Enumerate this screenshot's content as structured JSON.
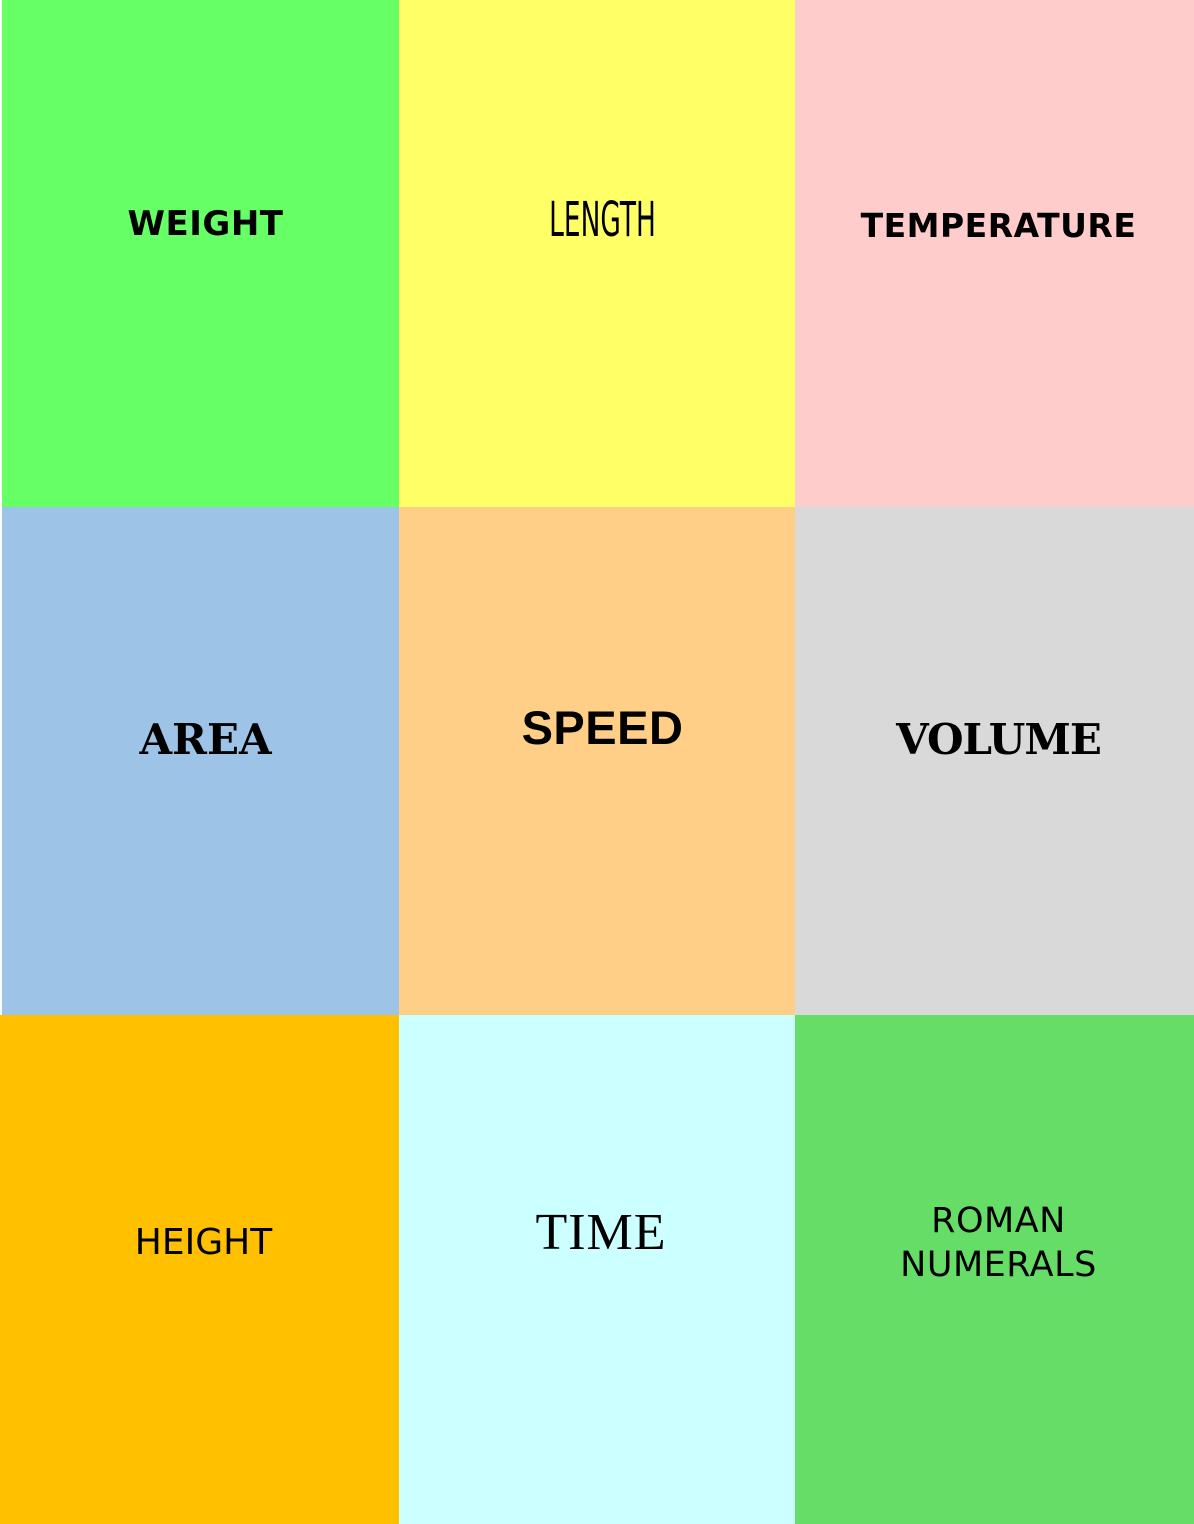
{
  "tiles": [
    {
      "label": "WEIGHT",
      "color": "#66ff66"
    },
    {
      "label": "LENGTH",
      "color": "#ffff66"
    },
    {
      "label": "TEMPERATURE",
      "color": "#ffcccc"
    },
    {
      "label": "AREA",
      "color": "#9dc3e6"
    },
    {
      "label": "SPEED",
      "color": "#ffcf87"
    },
    {
      "label": "VOLUME",
      "color": "#d9d9d9"
    },
    {
      "label": "HEIGHT",
      "color": "#ffc000"
    },
    {
      "label": "TIME",
      "color": "#ccffff"
    },
    {
      "label_lines": [
        "ROMAN",
        "NUMERALS"
      ],
      "color": "#66dd66"
    }
  ]
}
